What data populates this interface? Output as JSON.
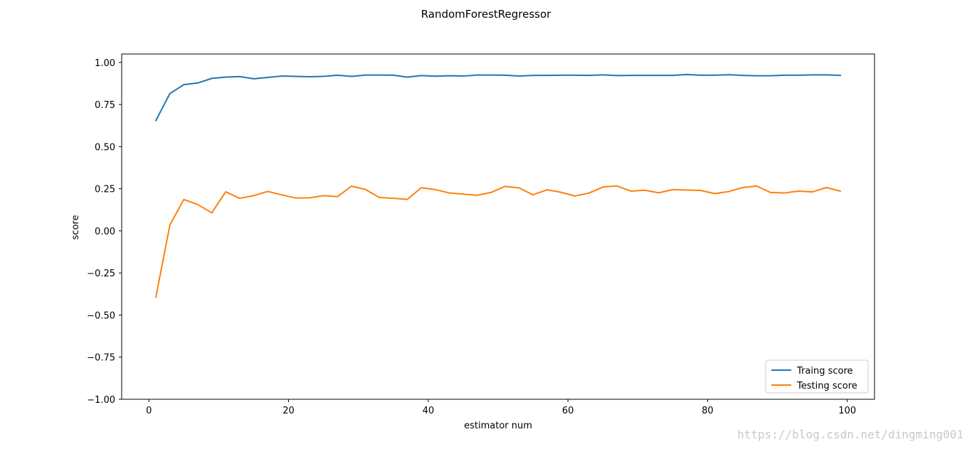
{
  "chart_data": {
    "type": "line",
    "title": "RandomForestRegressor",
    "xlabel": "estimator num",
    "ylabel": "score",
    "xlim": [
      -3.9,
      103.9
    ],
    "ylim": [
      -1.0,
      1.05
    ],
    "xticks": [
      0,
      20,
      40,
      60,
      80,
      100
    ],
    "xtick_labels": [
      "0",
      "20",
      "40",
      "60",
      "80",
      "100"
    ],
    "yticks": [
      -1.0,
      -0.75,
      -0.5,
      -0.25,
      0.0,
      0.25,
      0.5,
      0.75,
      1.0
    ],
    "ytick_labels": [
      "−1.00",
      "−0.75",
      "−0.50",
      "−0.25",
      "0.00",
      "0.25",
      "0.50",
      "0.75",
      "1.00"
    ],
    "grid": false,
    "legend_position": "lower-right",
    "x": [
      1,
      3,
      5,
      7,
      9,
      11,
      13,
      15,
      17,
      19,
      21,
      23,
      25,
      27,
      29,
      31,
      33,
      35,
      37,
      39,
      41,
      43,
      45,
      47,
      49,
      51,
      53,
      55,
      57,
      59,
      61,
      63,
      65,
      67,
      69,
      71,
      73,
      75,
      77,
      79,
      81,
      83,
      85,
      87,
      89,
      91,
      93,
      95,
      97,
      99
    ],
    "series": [
      {
        "name": "Traing score",
        "color": "#1f77b4",
        "values": [
          0.655,
          0.815,
          0.868,
          0.878,
          0.905,
          0.913,
          0.916,
          0.903,
          0.911,
          0.919,
          0.917,
          0.915,
          0.917,
          0.924,
          0.917,
          0.925,
          0.925,
          0.924,
          0.913,
          0.922,
          0.918,
          0.921,
          0.919,
          0.925,
          0.925,
          0.924,
          0.919,
          0.923,
          0.923,
          0.924,
          0.924,
          0.923,
          0.926,
          0.922,
          0.923,
          0.923,
          0.923,
          0.923,
          0.928,
          0.924,
          0.924,
          0.927,
          0.923,
          0.921,
          0.921,
          0.924,
          0.924,
          0.926,
          0.926,
          0.923
        ]
      },
      {
        "name": "Testing score",
        "color": "#ff7f0e",
        "values": [
          -0.393,
          0.035,
          0.186,
          0.156,
          0.107,
          0.232,
          0.193,
          0.209,
          0.234,
          0.214,
          0.195,
          0.196,
          0.209,
          0.203,
          0.265,
          0.246,
          0.198,
          0.193,
          0.187,
          0.256,
          0.245,
          0.225,
          0.218,
          0.211,
          0.228,
          0.264,
          0.255,
          0.214,
          0.244,
          0.229,
          0.207,
          0.224,
          0.26,
          0.267,
          0.236,
          0.241,
          0.226,
          0.245,
          0.242,
          0.24,
          0.221,
          0.233,
          0.257,
          0.266,
          0.228,
          0.225,
          0.236,
          0.231,
          0.257,
          0.236
        ]
      }
    ]
  },
  "watermark": "https://blog.csdn.net/dingming001"
}
